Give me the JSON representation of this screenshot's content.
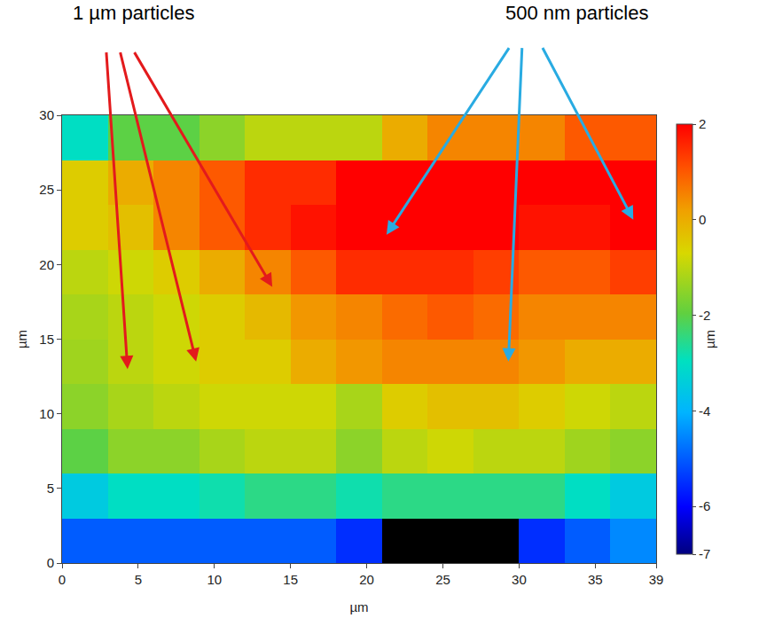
{
  "chart_data": {
    "type": "heatmap",
    "x": [
      1.5,
      4.5,
      7.5,
      10.5,
      13.5,
      16.5,
      19.5,
      22.5,
      25.5,
      28.5,
      31.5,
      34.5,
      37.5
    ],
    "y": [
      1.5,
      4.5,
      7.5,
      10.5,
      13.5,
      16.5,
      19.5,
      22.5,
      25.5,
      28.5
    ],
    "z": [
      [
        -5,
        -5,
        -5,
        -5,
        -5,
        -5,
        -5.5,
        null,
        null,
        null,
        -5.5,
        -5,
        -4.5
      ],
      [
        -3.5,
        -3,
        -3,
        -2.8,
        -2.5,
        -2.5,
        -2.8,
        -2.5,
        -2.5,
        -2.5,
        -2.5,
        -3,
        -3.5
      ],
      [
        -2,
        -1.5,
        -1.5,
        -1.2,
        -1,
        -1,
        -1.5,
        -1,
        -0.8,
        -1,
        -1,
        -1.3,
        -1.5
      ],
      [
        -1.5,
        -1.2,
        -1,
        -0.8,
        -0.8,
        -0.8,
        -1.2,
        -0.5,
        -0.3,
        -0.3,
        -0.5,
        -0.8,
        -1
      ],
      [
        -1.3,
        -1,
        -0.8,
        -0.5,
        -0.5,
        0,
        0.3,
        0.5,
        0.5,
        0.5,
        0.3,
        0,
        0
      ],
      [
        -1.2,
        -1,
        -0.8,
        -0.5,
        -0.2,
        0.3,
        0.5,
        0.8,
        1,
        0.8,
        0.5,
        0.5,
        0.5
      ],
      [
        -1,
        -0.8,
        -0.5,
        0,
        0.5,
        1,
        1.5,
        1.5,
        1.5,
        1.3,
        1,
        1,
        1.3
      ],
      [
        -0.5,
        -0.3,
        0.5,
        1,
        1.5,
        1.8,
        2,
        2,
        2,
        2,
        1.8,
        1.8,
        2
      ],
      [
        -0.5,
        0,
        0.5,
        1,
        1.5,
        1.5,
        2,
        2,
        2,
        2,
        2,
        2,
        2
      ],
      [
        -3,
        -2,
        -2,
        -1.5,
        -1,
        -1,
        -1,
        0,
        0.5,
        0.5,
        0.5,
        1,
        1
      ]
    ],
    "xlim": [
      0,
      39
    ],
    "ylim": [
      0,
      30
    ],
    "xticks": [
      0,
      5,
      10,
      15,
      20,
      25,
      30,
      35,
      39
    ],
    "yticks": [
      0,
      5,
      10,
      15,
      20,
      25,
      30
    ],
    "x_label": "µm",
    "y_label": "µm",
    "grid": false,
    "colorbar": {
      "range": [
        -7,
        2
      ],
      "ticks": [
        2,
        0,
        -2,
        -4,
        -6,
        -7
      ],
      "title": "µm"
    },
    "annotations": [
      {
        "text": "1 µm particles",
        "color": "#e31a1c",
        "points": [
          [
            4.3,
            13.0
          ],
          [
            8.8,
            13.5
          ],
          [
            13.8,
            18.5
          ]
        ]
      },
      {
        "text": "500 nm particles",
        "color": "#29abe2",
        "points": [
          [
            21.3,
            22.0
          ],
          [
            29.3,
            13.5
          ],
          [
            37.5,
            23.0
          ]
        ]
      }
    ]
  }
}
